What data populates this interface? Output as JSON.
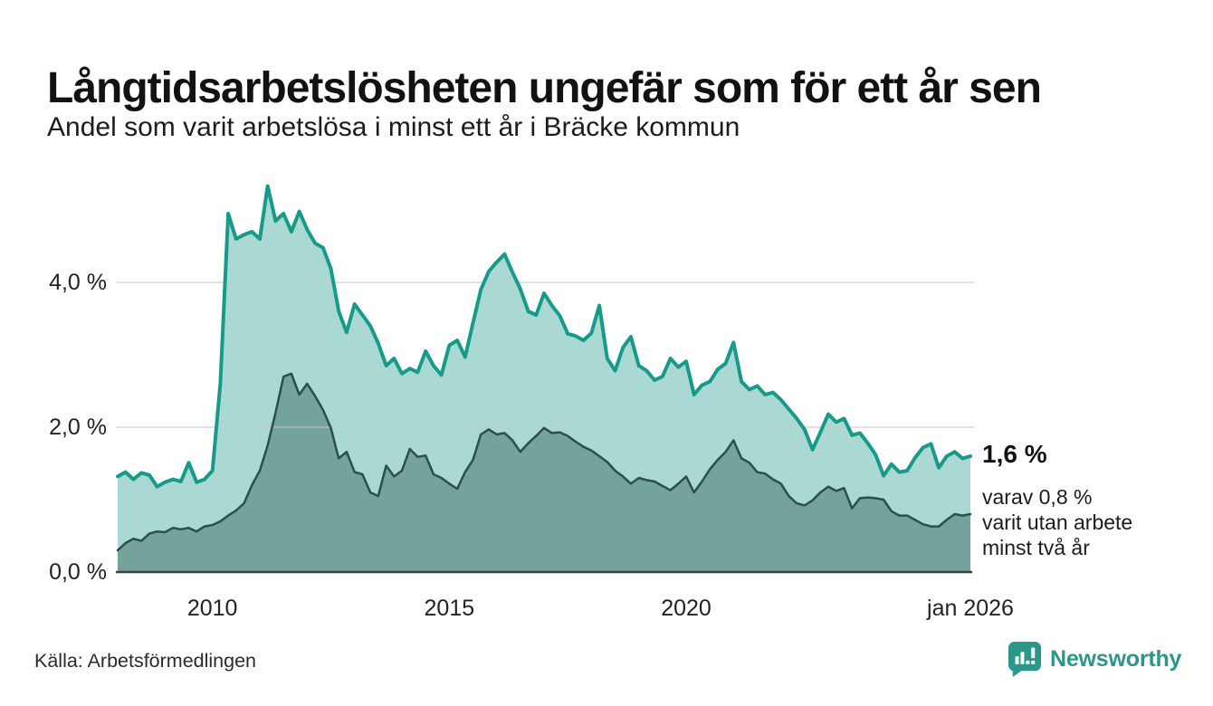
{
  "header": {
    "title": "Långtidsarbetslösheten ungefär som för ett år sen",
    "subtitle": "Andel som varit arbetslösa i minst ett år i Bräcke kommun"
  },
  "annotations": {
    "end_value": "1,6 %",
    "note_lines": [
      "varav 0,8 %",
      "varit utan arbete",
      "minst två år"
    ]
  },
  "footer": {
    "source": "Källa: Arbetsförmedlingen",
    "brand": "Newsworthy"
  },
  "colors": {
    "line_1yr": "#189a8a",
    "fill_1yr": "#a9d9d2",
    "line_2yr": "#2e4e48",
    "fill_2yr": "#73a39a",
    "grid": "#c9c9c9",
    "axis": "#3a423f",
    "brand_teal": "#2c968a",
    "text": "#121212"
  },
  "chart_data": {
    "type": "area",
    "title": "Långtidsarbetslösheten ungefär som för ett år sen",
    "subtitle": "Andel som varit arbetslösa i minst ett år i Bräcke kommun",
    "unit": "%",
    "grid": true,
    "legend_position": "none",
    "x_axis": {
      "range": [
        2008,
        2026
      ],
      "ticks": [
        {
          "year": 2010,
          "label": "2010"
        },
        {
          "year": 2015,
          "label": "2015"
        },
        {
          "year": 2020,
          "label": "2020"
        },
        {
          "year": 2026,
          "label": "jan 2026"
        }
      ]
    },
    "y_axis": {
      "range": [
        0,
        5.5
      ],
      "ticks": [
        {
          "value": 0,
          "label": "0,0 %"
        },
        {
          "value": 2,
          "label": "2,0 %"
        },
        {
          "value": 4,
          "label": "4,0 %"
        }
      ]
    },
    "x": [
      2008.0,
      2008.167,
      2008.333,
      2008.5,
      2008.667,
      2008.833,
      2009.0,
      2009.167,
      2009.333,
      2009.5,
      2009.667,
      2009.833,
      2010.0,
      2010.167,
      2010.333,
      2010.5,
      2010.667,
      2010.833,
      2011.0,
      2011.167,
      2011.333,
      2011.5,
      2011.667,
      2011.833,
      2012.0,
      2012.167,
      2012.333,
      2012.5,
      2012.667,
      2012.833,
      2013.0,
      2013.167,
      2013.333,
      2013.5,
      2013.667,
      2013.833,
      2014.0,
      2014.167,
      2014.333,
      2014.5,
      2014.667,
      2014.833,
      2015.0,
      2015.167,
      2015.333,
      2015.5,
      2015.667,
      2015.833,
      2016.0,
      2016.167,
      2016.333,
      2016.5,
      2016.667,
      2016.833,
      2017.0,
      2017.167,
      2017.333,
      2017.5,
      2017.667,
      2017.833,
      2018.0,
      2018.167,
      2018.333,
      2018.5,
      2018.667,
      2018.833,
      2019.0,
      2019.167,
      2019.333,
      2019.5,
      2019.667,
      2019.833,
      2020.0,
      2020.167,
      2020.333,
      2020.5,
      2020.667,
      2020.833,
      2021.0,
      2021.167,
      2021.333,
      2021.5,
      2021.667,
      2021.833,
      2022.0,
      2022.167,
      2022.333,
      2022.5,
      2022.667,
      2022.833,
      2023.0,
      2023.167,
      2023.333,
      2023.5,
      2023.667,
      2023.833,
      2024.0,
      2024.167,
      2024.333,
      2024.5,
      2024.667,
      2024.833,
      2025.0,
      2025.167,
      2025.333,
      2025.5,
      2025.667,
      2025.833,
      2026.0
    ],
    "series": [
      {
        "id": "minst-ett-ar",
        "name": "Andel som varit arbetslösa i minst ett år",
        "end_label": "1,6 %",
        "line_color": "#189a8a",
        "fill_color": "#a9d9d2",
        "line_width": 4,
        "values": [
          1.32,
          1.38,
          1.28,
          1.37,
          1.34,
          1.18,
          1.24,
          1.28,
          1.25,
          1.51,
          1.24,
          1.28,
          1.4,
          2.6,
          4.95,
          4.6,
          4.66,
          4.7,
          4.6,
          5.33,
          4.85,
          4.95,
          4.7,
          4.98,
          4.73,
          4.54,
          4.48,
          4.19,
          3.6,
          3.31,
          3.7,
          3.55,
          3.4,
          3.16,
          2.85,
          2.95,
          2.74,
          2.81,
          2.76,
          3.05,
          2.85,
          2.72,
          3.13,
          3.2,
          2.97,
          3.44,
          3.9,
          4.15,
          4.28,
          4.39,
          4.14,
          3.91,
          3.6,
          3.55,
          3.85,
          3.68,
          3.54,
          3.29,
          3.26,
          3.2,
          3.3,
          3.68,
          2.95,
          2.78,
          3.1,
          3.25,
          2.85,
          2.78,
          2.65,
          2.7,
          2.95,
          2.83,
          2.91,
          2.45,
          2.58,
          2.63,
          2.8,
          2.88,
          3.17,
          2.63,
          2.52,
          2.57,
          2.45,
          2.48,
          2.38,
          2.25,
          2.12,
          1.97,
          1.69,
          1.93,
          2.18,
          2.07,
          2.12,
          1.89,
          1.92,
          1.78,
          1.62,
          1.33,
          1.49,
          1.38,
          1.4,
          1.58,
          1.72,
          1.77,
          1.44,
          1.6,
          1.66,
          1.57,
          1.6
        ]
      },
      {
        "id": "minst-tva-ar",
        "name": "varav varit utan arbete minst två år",
        "end_label": "0,8 %",
        "line_color": "#2e4e48",
        "fill_color": "#73a39a",
        "line_width": 2.5,
        "values": [
          0.3,
          0.4,
          0.46,
          0.43,
          0.53,
          0.56,
          0.55,
          0.61,
          0.59,
          0.61,
          0.56,
          0.63,
          0.65,
          0.7,
          0.78,
          0.85,
          0.95,
          1.2,
          1.4,
          1.75,
          2.2,
          2.7,
          2.74,
          2.45,
          2.6,
          2.43,
          2.24,
          1.99,
          1.57,
          1.66,
          1.38,
          1.35,
          1.1,
          1.05,
          1.47,
          1.32,
          1.4,
          1.7,
          1.59,
          1.61,
          1.35,
          1.3,
          1.22,
          1.15,
          1.38,
          1.55,
          1.9,
          1.97,
          1.9,
          1.92,
          1.82,
          1.66,
          1.78,
          1.88,
          1.99,
          1.92,
          1.93,
          1.88,
          1.8,
          1.73,
          1.68,
          1.6,
          1.52,
          1.4,
          1.32,
          1.22,
          1.3,
          1.27,
          1.25,
          1.19,
          1.13,
          1.22,
          1.32,
          1.1,
          1.25,
          1.42,
          1.55,
          1.66,
          1.82,
          1.57,
          1.51,
          1.38,
          1.36,
          1.28,
          1.22,
          1.05,
          0.95,
          0.92,
          0.99,
          1.1,
          1.18,
          1.12,
          1.16,
          0.88,
          1.02,
          1.03,
          1.02,
          1.0,
          0.84,
          0.78,
          0.78,
          0.72,
          0.66,
          0.63,
          0.63,
          0.72,
          0.8,
          0.78,
          0.8
        ]
      }
    ]
  }
}
